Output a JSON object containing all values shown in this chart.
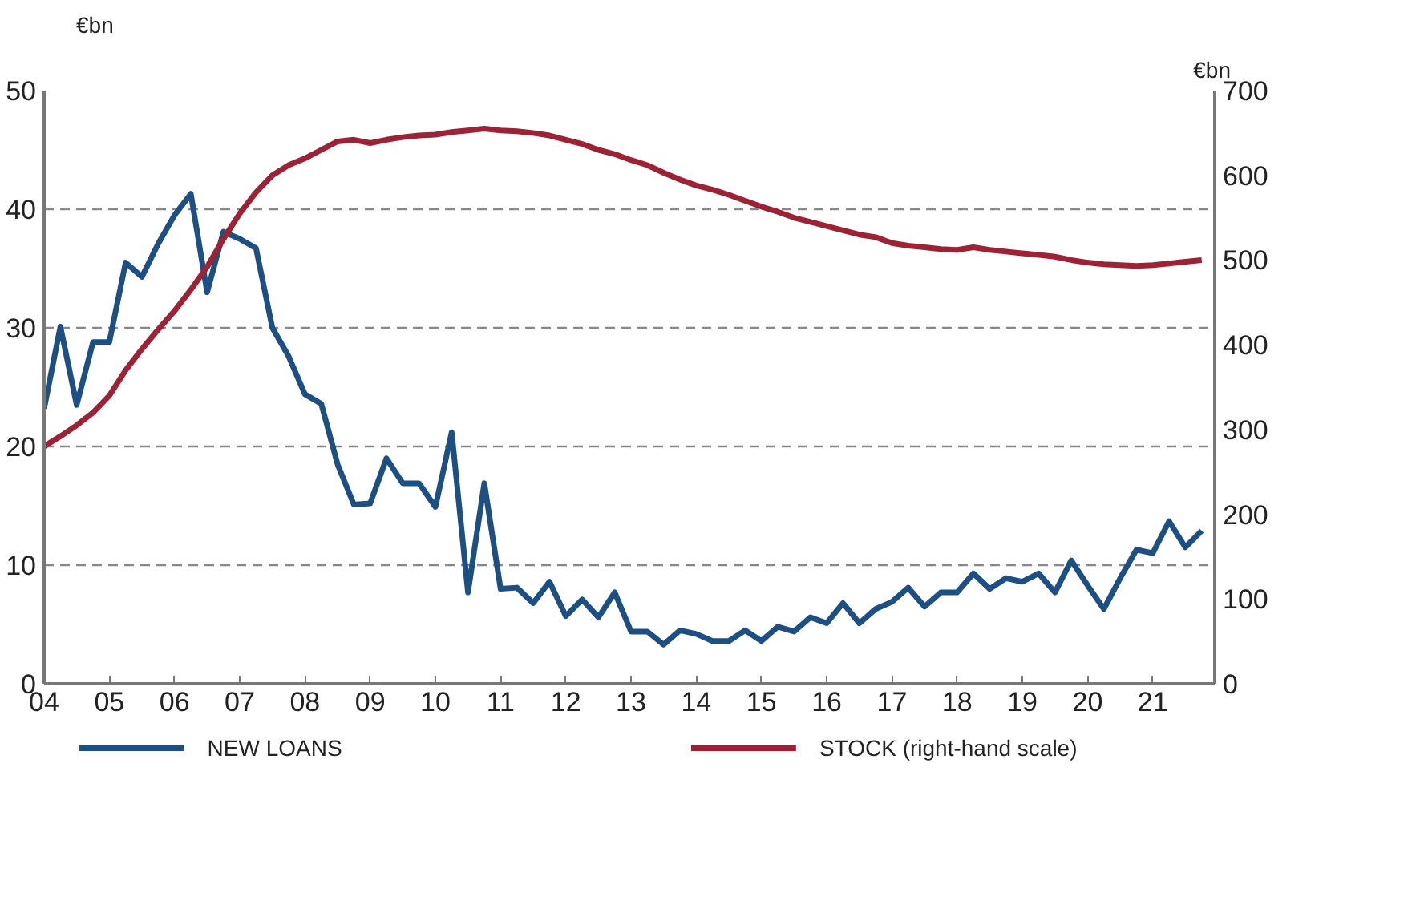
{
  "chart_data": {
    "type": "line",
    "ylabel": "€bn",
    "y2label": "€bn",
    "x": [
      2004,
      2004.25,
      2004.5,
      2004.75,
      2005,
      2005.25,
      2005.5,
      2005.75,
      2006,
      2006.25,
      2006.5,
      2006.75,
      2007,
      2007.25,
      2007.5,
      2007.75,
      2008,
      2008.25,
      2008.5,
      2008.75,
      2009,
      2009.25,
      2009.5,
      2009.75,
      2010,
      2010.25,
      2010.5,
      2010.75,
      2011,
      2011.25,
      2011.5,
      2011.75,
      2012,
      2012.25,
      2012.5,
      2012.75,
      2013,
      2013.25,
      2013.5,
      2013.75,
      2014,
      2014.25,
      2014.5,
      2014.75,
      2015,
      2015.25,
      2015.5,
      2015.75,
      2016,
      2016.25,
      2016.5,
      2016.75,
      2017,
      2017.25,
      2017.5,
      2017.75,
      2018,
      2018.25,
      2018.5,
      2018.75,
      2019,
      2019.25,
      2019.5,
      2019.75,
      2020,
      2020.25,
      2020.5,
      2020.75,
      2021,
      2021.25,
      2021.5,
      2021.75
    ],
    "series": [
      {
        "name": "NEW LOANS",
        "color": "#1d4f82",
        "values": [
          23.2,
          30.1,
          23.5,
          28.8,
          28.8,
          35.5,
          34.3,
          37.1,
          39.5,
          41.3,
          33.0,
          38.1,
          37.5,
          36.7,
          30.0,
          27.6,
          24.4,
          23.6,
          18.5,
          15.1,
          15.2,
          19.0,
          16.9,
          16.9,
          14.9,
          21.2,
          7.7,
          16.9,
          8.0,
          8.1,
          6.8,
          8.6,
          5.7,
          7.1,
          5.6,
          7.7,
          4.4,
          4.4,
          3.3,
          4.5,
          4.2,
          3.6,
          3.6,
          4.5,
          3.6,
          4.8,
          4.4,
          5.6,
          5.1,
          6.8,
          5.1,
          6.3,
          6.9,
          8.1,
          6.5,
          7.7,
          7.7,
          9.3,
          8.0,
          8.9,
          8.6,
          9.3,
          7.7,
          10.4,
          8.3,
          6.3,
          8.9,
          11.3,
          11.0,
          13.7,
          11.5,
          12.9
        ]
      },
      {
        "name": "STOCK (right-hand scale)",
        "color": "#9b2335",
        "axis": "y2",
        "values": [
          280,
          292,
          305,
          320,
          340,
          370,
          395,
          418,
          440,
          465,
          492,
          525,
          555,
          580,
          600,
          612,
          620,
          630,
          640,
          642,
          638,
          642,
          645,
          647,
          648,
          651,
          653,
          655,
          653,
          652,
          650,
          647,
          642,
          637,
          630,
          625,
          618,
          612,
          603,
          595,
          588,
          583,
          577,
          570,
          563,
          557,
          550,
          545,
          540,
          535,
          530,
          527,
          520,
          517,
          515,
          513,
          512,
          515,
          512,
          510,
          508,
          506,
          504,
          500,
          497,
          495,
          494,
          493,
          494,
          496,
          498,
          500
        ]
      }
    ],
    "xlim": [
      2004,
      2021.95
    ],
    "xticks": [
      {
        "value": 2004,
        "label": "04"
      },
      {
        "value": 2005,
        "label": "05"
      },
      {
        "value": 2006,
        "label": "06"
      },
      {
        "value": 2007,
        "label": "07"
      },
      {
        "value": 2008,
        "label": "08"
      },
      {
        "value": 2009,
        "label": "09"
      },
      {
        "value": 2010,
        "label": "10"
      },
      {
        "value": 2011,
        "label": "11"
      },
      {
        "value": 2012,
        "label": "12"
      },
      {
        "value": 2013,
        "label": "13"
      },
      {
        "value": 2014,
        "label": "14"
      },
      {
        "value": 2015,
        "label": "15"
      },
      {
        "value": 2016,
        "label": "16"
      },
      {
        "value": 2017,
        "label": "17"
      },
      {
        "value": 2018,
        "label": "18"
      },
      {
        "value": 2019,
        "label": "19"
      },
      {
        "value": 2020,
        "label": "20"
      },
      {
        "value": 2021,
        "label": "21"
      }
    ],
    "ylim": [
      0,
      50
    ],
    "yticks": [
      0,
      10,
      20,
      30,
      40,
      50
    ],
    "y2lim": [
      0,
      700
    ],
    "y2ticks": [
      0,
      100,
      200,
      300,
      400,
      500,
      600,
      700
    ],
    "grid": "y",
    "legend": "bottom",
    "line_style": "solid"
  }
}
